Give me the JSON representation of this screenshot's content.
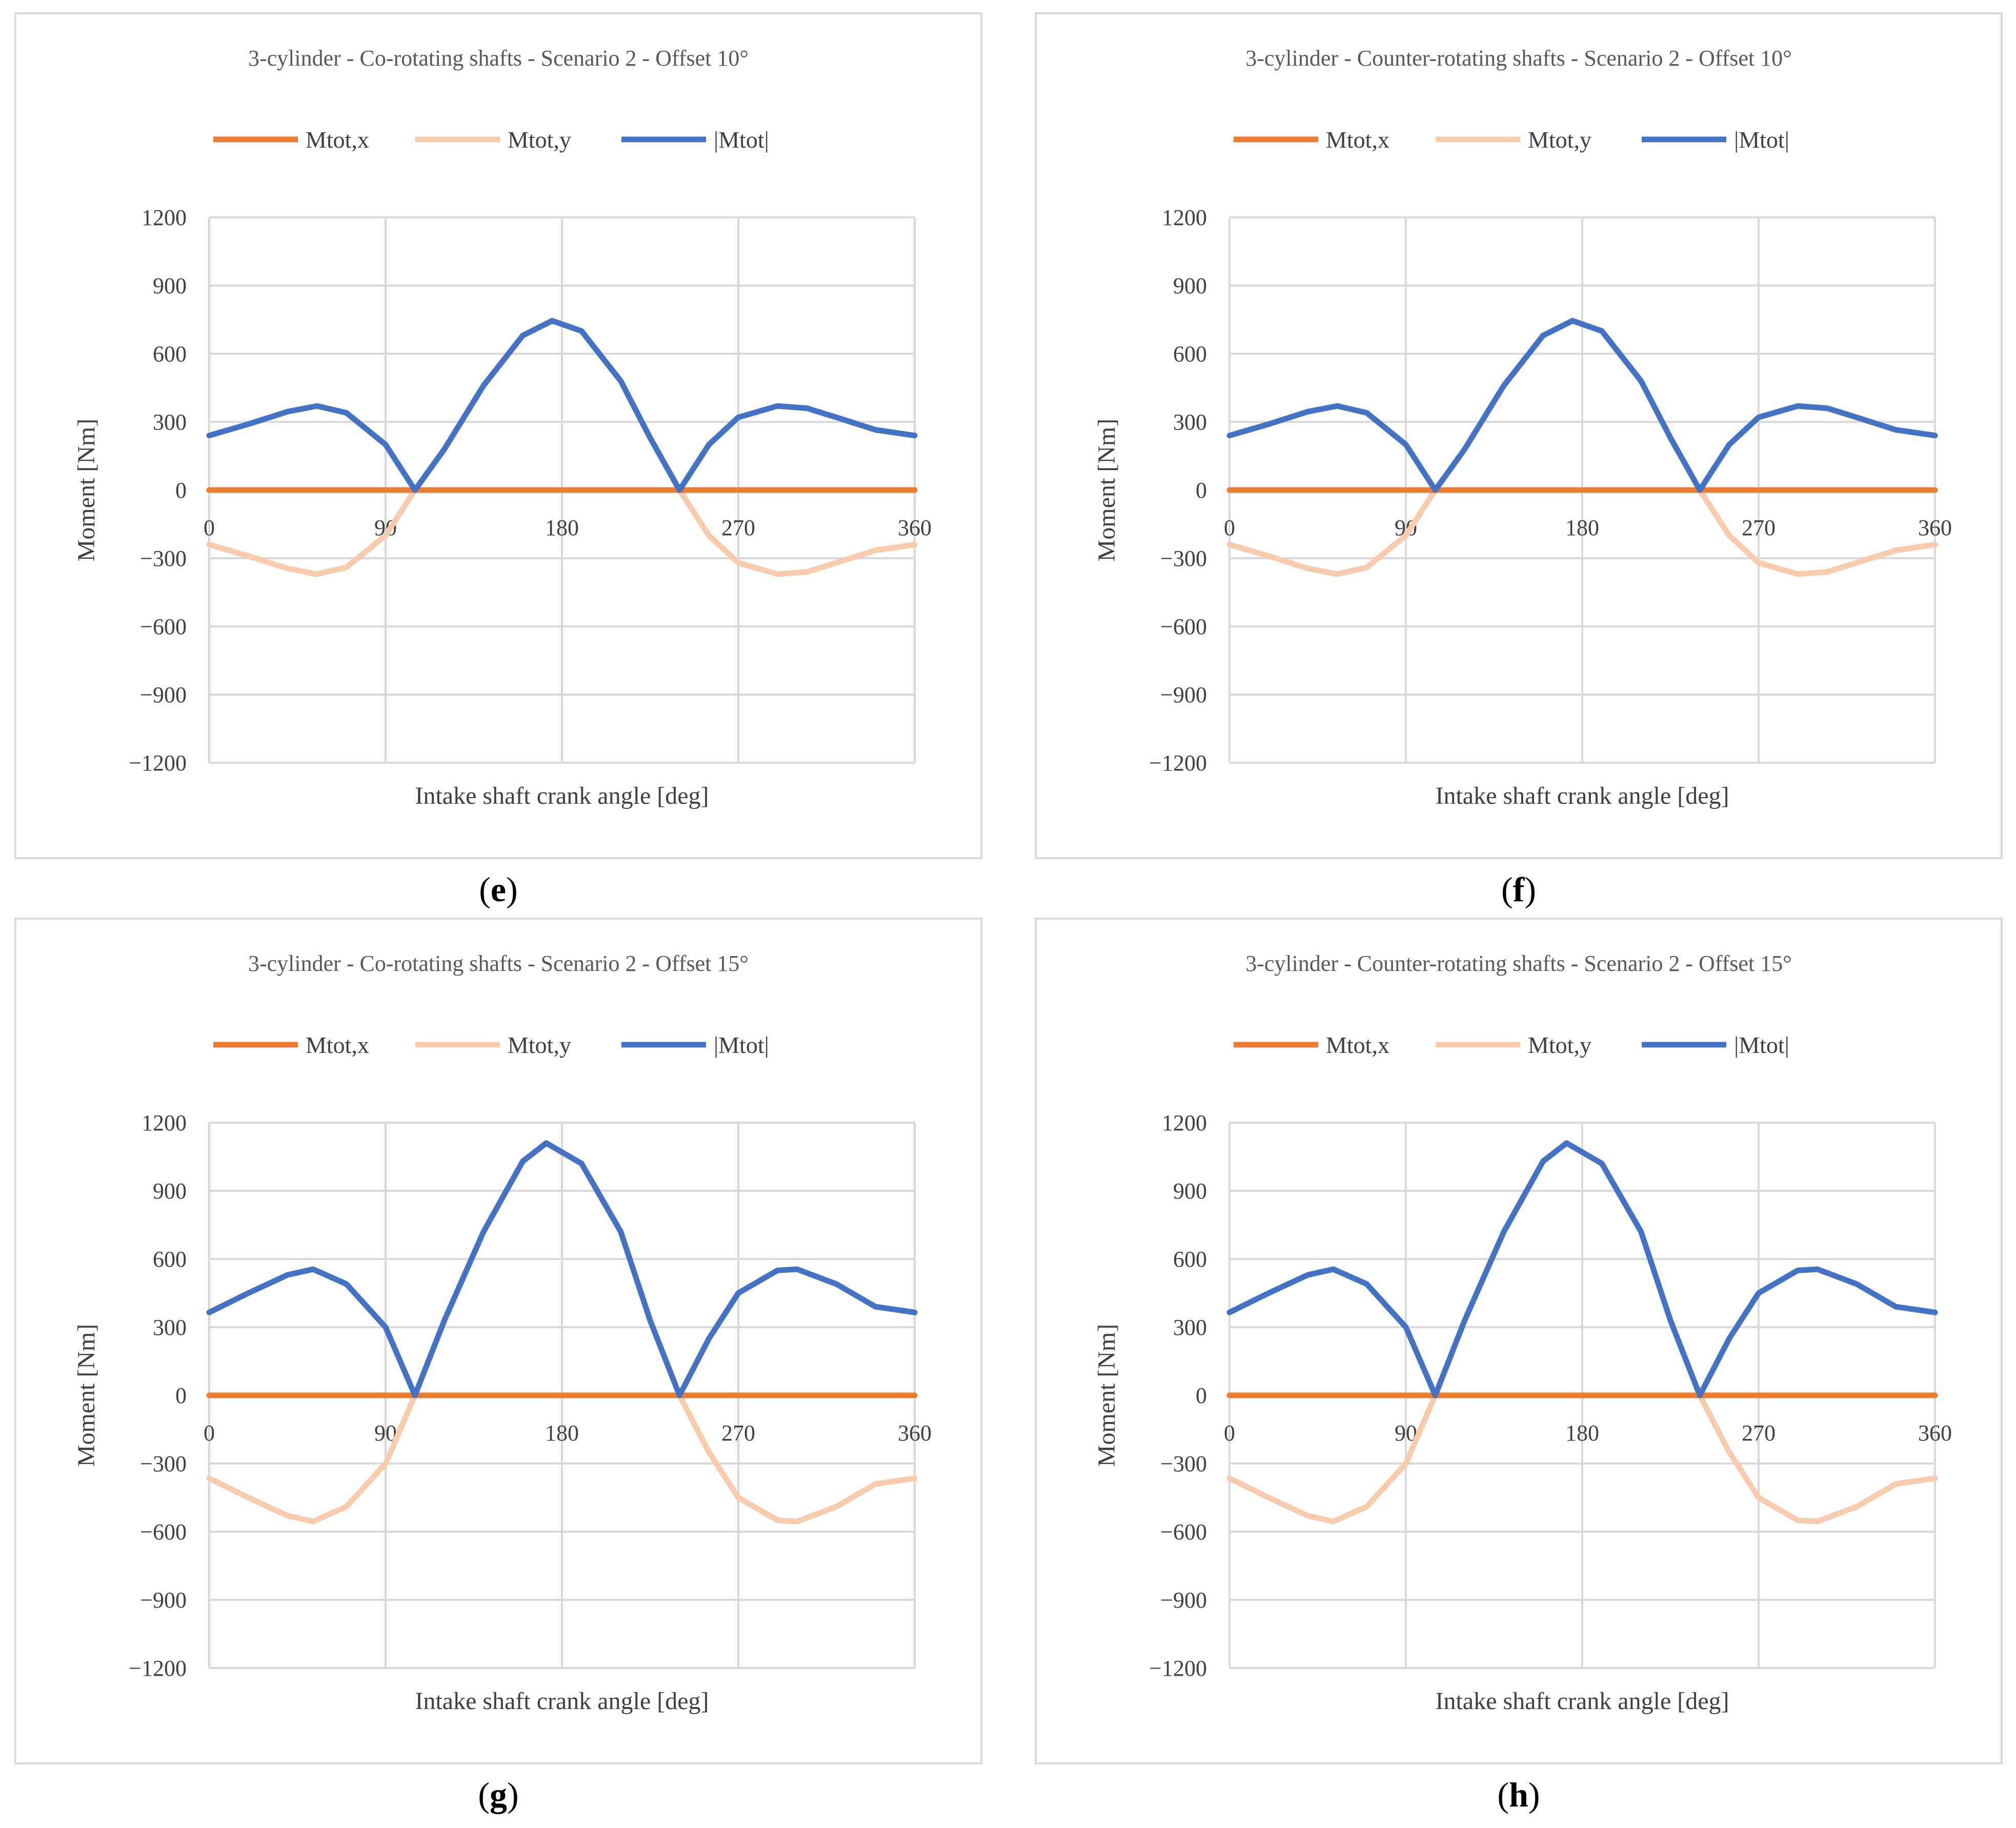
{
  "colors": {
    "x": "#ED7D31",
    "y": "#F8CBAD",
    "tot": "#4472C4",
    "grid": "#d9d9d9"
  },
  "chart_data": [
    {
      "panel": "e",
      "type": "line",
      "title": "3-cylinder - Co-rotating shafts - Scenario 2 - Offset 10°",
      "xlabel": "Intake shaft crank angle [deg]",
      "ylabel": "Moment [Nm]",
      "xlim": [
        0,
        360
      ],
      "ylim": [
        -1200,
        1200
      ],
      "xticks": [
        "0",
        "90",
        "180",
        "270",
        "360"
      ],
      "yticks": [
        "1200",
        "900",
        "600",
        "300",
        "0",
        "−300",
        "−600",
        "−900",
        "−1200"
      ],
      "legend": [
        "Mtot,x",
        "Mtot,y",
        "|Mtot|"
      ],
      "x": [
        0,
        20,
        40,
        55,
        70,
        90,
        105,
        120,
        140,
        160,
        175,
        190,
        210,
        225,
        240,
        255,
        270,
        290,
        305,
        320,
        340,
        360
      ],
      "series": [
        {
          "name": "Mtot,x",
          "values": [
            0,
            0,
            0,
            0,
            0,
            0,
            0,
            0,
            0,
            0,
            0,
            0,
            0,
            0,
            0,
            0,
            0,
            0,
            0,
            0,
            0,
            0
          ]
        },
        {
          "name": "Mtot,y",
          "values": [
            -240,
            -290,
            -345,
            -370,
            -340,
            -200,
            0,
            180,
            460,
            680,
            745,
            700,
            480,
            230,
            0,
            -200,
            -320,
            -370,
            -360,
            -320,
            -265,
            -240
          ]
        },
        {
          "name": "|Mtot|",
          "values": [
            240,
            290,
            345,
            370,
            340,
            200,
            0,
            180,
            460,
            680,
            745,
            700,
            480,
            230,
            0,
            200,
            320,
            370,
            360,
            320,
            265,
            240
          ]
        }
      ]
    },
    {
      "panel": "f",
      "type": "line",
      "title": "3-cylinder - Counter-rotating shafts - Scenario 2 - Offset 10°",
      "xlabel": "Intake shaft crank angle [deg]",
      "ylabel": "Moment [Nm]",
      "xlim": [
        0,
        360
      ],
      "ylim": [
        -1200,
        1200
      ],
      "xticks": [
        "0",
        "90",
        "180",
        "270",
        "360"
      ],
      "yticks": [
        "1200",
        "900",
        "600",
        "300",
        "0",
        "−300",
        "−600",
        "−900",
        "−1200"
      ],
      "legend": [
        "Mtot,x",
        "Mtot,y",
        "|Mtot|"
      ],
      "x": [
        0,
        20,
        40,
        55,
        70,
        90,
        105,
        120,
        140,
        160,
        175,
        190,
        210,
        225,
        240,
        255,
        270,
        290,
        305,
        320,
        340,
        360
      ],
      "series": [
        {
          "name": "Mtot,x",
          "values": [
            0,
            0,
            0,
            0,
            0,
            0,
            0,
            0,
            0,
            0,
            0,
            0,
            0,
            0,
            0,
            0,
            0,
            0,
            0,
            0,
            0,
            0
          ]
        },
        {
          "name": "Mtot,y",
          "values": [
            -240,
            -290,
            -345,
            -370,
            -340,
            -200,
            0,
            180,
            460,
            680,
            745,
            700,
            480,
            230,
            0,
            -200,
            -320,
            -370,
            -360,
            -320,
            -265,
            -240
          ]
        },
        {
          "name": "|Mtot|",
          "values": [
            240,
            290,
            345,
            370,
            340,
            200,
            0,
            180,
            460,
            680,
            745,
            700,
            480,
            230,
            0,
            200,
            320,
            370,
            360,
            320,
            265,
            240
          ]
        }
      ]
    },
    {
      "panel": "g",
      "type": "line",
      "title": "3-cylinder - Co-rotating shafts - Scenario 2 - Offset 15°",
      "xlabel": "Intake shaft crank angle [deg]",
      "ylabel": "Moment [Nm]",
      "xlim": [
        0,
        360
      ],
      "ylim": [
        -1200,
        1200
      ],
      "xticks": [
        "0",
        "90",
        "180",
        "270",
        "360"
      ],
      "yticks": [
        "1200",
        "900",
        "600",
        "300",
        "0",
        "−300",
        "−600",
        "−900",
        "−1200"
      ],
      "legend": [
        "Mtot,x",
        "Mtot,y",
        "|Mtot|"
      ],
      "x": [
        0,
        20,
        40,
        53,
        70,
        90,
        105,
        120,
        140,
        160,
        172,
        190,
        210,
        225,
        240,
        255,
        270,
        290,
        300,
        320,
        340,
        360
      ],
      "series": [
        {
          "name": "Mtot,x",
          "values": [
            0,
            0,
            0,
            0,
            0,
            0,
            0,
            0,
            0,
            0,
            0,
            0,
            0,
            0,
            0,
            0,
            0,
            0,
            0,
            0,
            0,
            0
          ]
        },
        {
          "name": "Mtot,y",
          "values": [
            -365,
            -450,
            -530,
            -555,
            -490,
            -300,
            0,
            330,
            720,
            1030,
            1110,
            1020,
            720,
            330,
            0,
            -250,
            -450,
            -550,
            -555,
            -490,
            -390,
            -365
          ]
        },
        {
          "name": "|Mtot|",
          "values": [
            365,
            450,
            530,
            555,
            490,
            300,
            0,
            330,
            720,
            1030,
            1110,
            1020,
            720,
            330,
            0,
            250,
            450,
            550,
            555,
            490,
            390,
            365
          ]
        }
      ]
    },
    {
      "panel": "h",
      "type": "line",
      "title": "3-cylinder - Counter-rotating shafts - Scenario 2 - Offset 15°",
      "xlabel": "Intake shaft crank angle [deg]",
      "ylabel": "Moment [Nm]",
      "xlim": [
        0,
        360
      ],
      "ylim": [
        -1200,
        1200
      ],
      "xticks": [
        "0",
        "90",
        "180",
        "270",
        "360"
      ],
      "yticks": [
        "1200",
        "900",
        "600",
        "300",
        "0",
        "−300",
        "−600",
        "−900",
        "−1200"
      ],
      "legend": [
        "Mtot,x",
        "Mtot,y",
        "|Mtot|"
      ],
      "x": [
        0,
        20,
        40,
        53,
        70,
        90,
        105,
        120,
        140,
        160,
        172,
        190,
        210,
        225,
        240,
        255,
        270,
        290,
        300,
        320,
        340,
        360
      ],
      "series": [
        {
          "name": "Mtot,x",
          "values": [
            0,
            0,
            0,
            0,
            0,
            0,
            0,
            0,
            0,
            0,
            0,
            0,
            0,
            0,
            0,
            0,
            0,
            0,
            0,
            0,
            0,
            0
          ]
        },
        {
          "name": "Mtot,y",
          "values": [
            -365,
            -450,
            -530,
            -555,
            -490,
            -300,
            0,
            330,
            720,
            1030,
            1110,
            1020,
            720,
            330,
            0,
            -250,
            -450,
            -550,
            -555,
            -490,
            -390,
            -365
          ]
        },
        {
          "name": "|Mtot|",
          "values": [
            365,
            450,
            530,
            555,
            490,
            300,
            0,
            330,
            720,
            1030,
            1110,
            1020,
            720,
            330,
            0,
            250,
            450,
            550,
            555,
            490,
            390,
            365
          ]
        }
      ]
    }
  ]
}
